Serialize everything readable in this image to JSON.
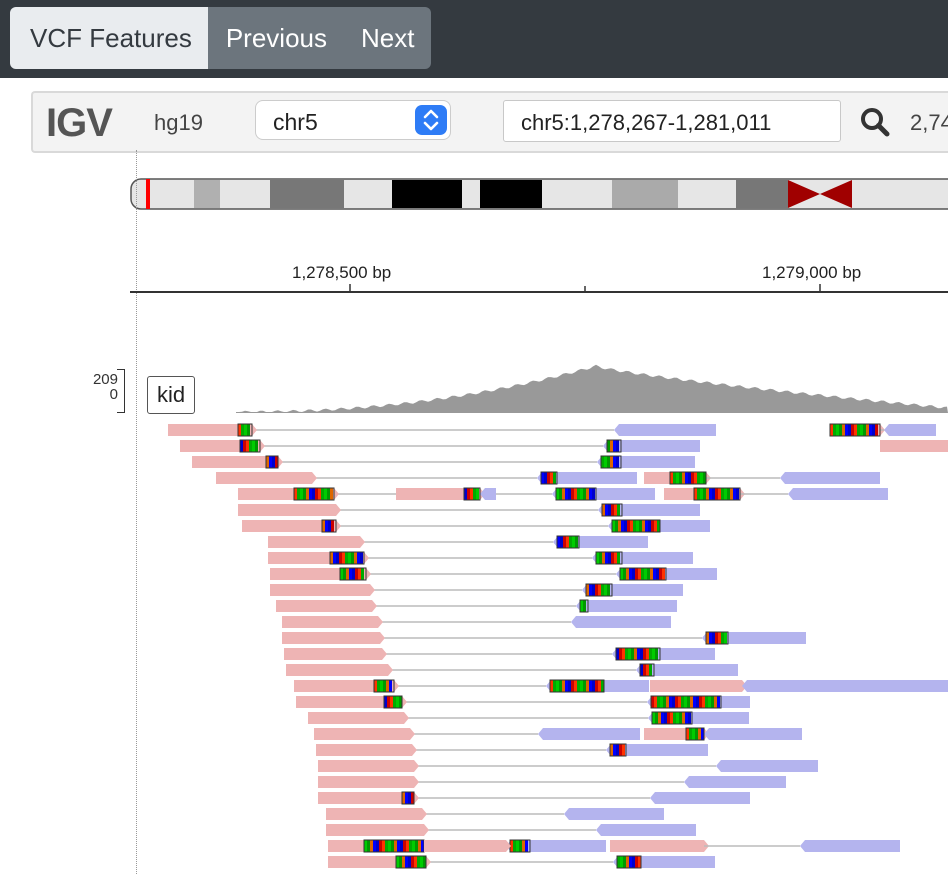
{
  "toolbar": {
    "vcf_features_label": "VCF Features",
    "previous_label": "Previous",
    "next_label": "Next"
  },
  "igv": {
    "logo": "IGV",
    "genome": "hg19",
    "chromosome": "chr5",
    "locus": "chr5:1,278,267-1,281,011",
    "width_text": "2,74",
    "search_icon": "magnifier-icon"
  },
  "ruler": {
    "ticks": [
      {
        "label": "1,278,500 bp"
      },
      {
        "label": "1,279,000 bp"
      }
    ]
  },
  "track": {
    "name": "kid",
    "scale_max": "209",
    "scale_min": "0"
  },
  "colors": {
    "read_forward": "#eeb4b4",
    "read_reverse": "#b4b4ee",
    "coverage": "#999999",
    "topbar": "#343a40",
    "centromere": "#a00000"
  }
}
